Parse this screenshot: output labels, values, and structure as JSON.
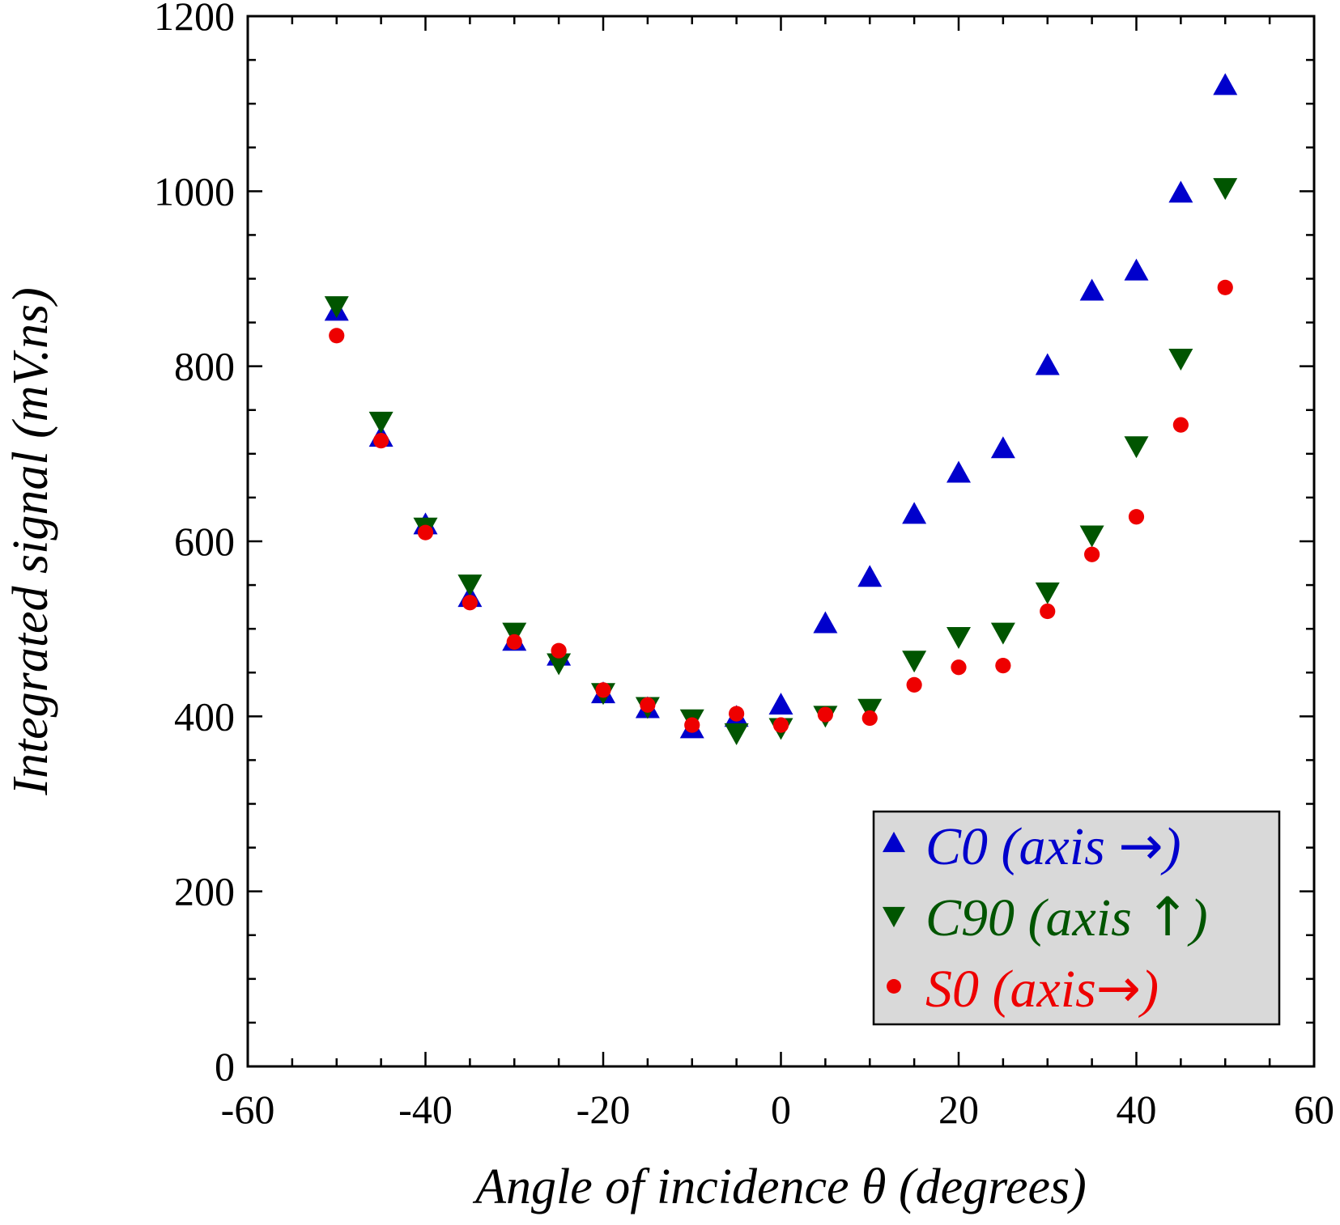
{
  "chart_data": {
    "type": "scatter",
    "xlabel": "Angle of incidence θ (degrees)",
    "ylabel": "Integrated signal (mV.ns)",
    "xlim": [
      -60,
      60
    ],
    "ylim": [
      0,
      1200
    ],
    "xticks": [
      -60,
      -40,
      -20,
      0,
      20,
      40,
      60
    ],
    "yticks": [
      0,
      200,
      400,
      600,
      800,
      1000,
      1200
    ],
    "x_tick_labels": [
      "-60",
      "-40",
      "-20",
      "0",
      "20",
      "40",
      "60"
    ],
    "y_tick_labels": [
      "0",
      "200",
      "400",
      "600",
      "800",
      "1000",
      "1200"
    ],
    "grid": false,
    "legend_position": "bottom-right",
    "series": [
      {
        "name": "C0 (axis →)",
        "name_main": "C0 (axis ",
        "name_arrow": "→",
        "name_close": ")",
        "marker": "triangle-up",
        "color": "#0000cc",
        "x": [
          -50,
          -45,
          -40,
          -35,
          -30,
          -25,
          -20,
          -15,
          -10,
          -5,
          0,
          5,
          10,
          15,
          20,
          25,
          30,
          35,
          40,
          45,
          50
        ],
        "y": [
          862,
          718,
          618,
          535,
          485,
          468,
          425,
          408,
          385,
          398,
          412,
          505,
          558,
          630,
          677,
          705,
          800,
          885,
          908,
          997,
          1120
        ]
      },
      {
        "name": "C90 (axis ↑)",
        "name_main": "C90 (axis ",
        "name_arrow": "↑",
        "name_close": ")",
        "marker": "triangle-down",
        "color": "#005500",
        "x": [
          -50,
          -45,
          -40,
          -35,
          -30,
          -25,
          -20,
          -15,
          -10,
          -5,
          0,
          5,
          10,
          15,
          20,
          25,
          30,
          35,
          40,
          45,
          50
        ],
        "y": [
          870,
          738,
          617,
          552,
          497,
          462,
          428,
          412,
          398,
          382,
          388,
          402,
          410,
          465,
          492,
          497,
          543,
          608,
          710,
          810,
          1005
        ]
      },
      {
        "name": "S0 (axis→)",
        "name_main": "S0 (axis",
        "name_arrow": "→",
        "name_close": ")",
        "marker": "circle",
        "color": "#ee0000",
        "x": [
          -50,
          -45,
          -40,
          -35,
          -30,
          -25,
          -20,
          -15,
          -10,
          -5,
          0,
          5,
          10,
          15,
          20,
          25,
          30,
          35,
          40,
          45,
          50
        ],
        "y": [
          835,
          715,
          610,
          530,
          485,
          475,
          430,
          413,
          390,
          403,
          390,
          402,
          398,
          436,
          456,
          458,
          520,
          585,
          628,
          733,
          890
        ]
      }
    ]
  }
}
